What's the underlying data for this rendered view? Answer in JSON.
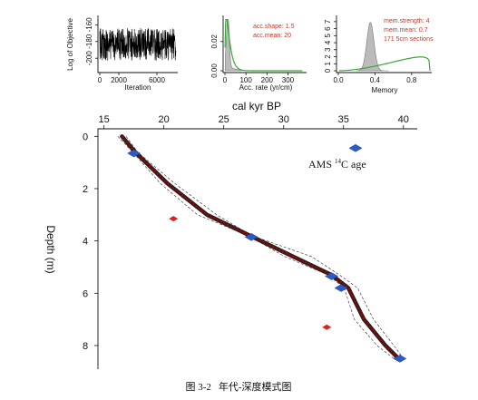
{
  "chart_data": [
    {
      "type": "line",
      "panel": "iteration-trace",
      "xlabel": "Iteration",
      "ylabel": "Log of Objective",
      "xticks": [
        "0",
        "2000",
        "6000"
      ],
      "yticks": [
        "-200",
        "-180",
        "-160"
      ],
      "xlim": [
        0,
        8000
      ],
      "ylim": [
        -215,
        -152
      ]
    },
    {
      "type": "area",
      "panel": "accumulation-rate",
      "xlabel": "Acc. rate (yr/cm)",
      "xticks": [
        "0",
        "100",
        "200",
        "300"
      ],
      "yticks": [
        "0.00",
        "0.02"
      ],
      "xlim": [
        0,
        380
      ],
      "ylim": [
        0,
        0.036
      ],
      "annotations": [
        "acc.shape: 1.5",
        "acc.mean: 20"
      ],
      "colors": {
        "prior": "#3aa63a",
        "posterior": "#bbbbbb"
      }
    },
    {
      "type": "area",
      "panel": "memory",
      "xlabel": "Memory",
      "xticks": [
        "0.0",
        "0.4",
        "0.8"
      ],
      "yticks": [
        "0",
        "1",
        "2",
        "3",
        "4",
        "5",
        "6",
        "7"
      ],
      "xlim": [
        0,
        1
      ],
      "ylim": [
        0,
        7.5
      ],
      "annotations": [
        "mem.strength: 4",
        "mem.mean: 0.7",
        "171 5cm sections"
      ],
      "colors": {
        "prior": "#3aa63a",
        "posterior": "#bbbbbb"
      }
    },
    {
      "type": "scatter",
      "panel": "age-depth",
      "title": "cal kyr BP",
      "ylabel": "Depth (m)",
      "xticks": [
        "15",
        "20",
        "25",
        "30",
        "35",
        "40"
      ],
      "yticks": [
        "0",
        "2",
        "4",
        "6",
        "8"
      ],
      "xlim": [
        14.8,
        41
      ],
      "ylim": [
        -0.15,
        8.8
      ],
      "legend": "AMS 14C age",
      "model": {
        "depth": [
          0.0,
          0.6,
          1.8,
          3.0,
          3.8,
          4.6,
          5.3,
          5.8,
          7.0,
          8.0,
          8.5
        ],
        "age": [
          16.5,
          17.6,
          20.3,
          23.6,
          27.2,
          30.8,
          34.0,
          35.4,
          36.7,
          38.5,
          39.6
        ]
      },
      "dated": [
        {
          "age": 17.5,
          "depth": 0.65
        },
        {
          "age": 27.3,
          "depth": 3.85
        },
        {
          "age": 34.0,
          "depth": 5.35
        },
        {
          "age": 34.8,
          "depth": 5.8
        },
        {
          "age": 39.7,
          "depth": 8.5
        },
        {
          "age": 36.0,
          "depth": 0.45
        }
      ],
      "outliers": [
        {
          "age": 20.8,
          "depth": 3.15
        },
        {
          "age": 33.6,
          "depth": 7.3
        }
      ],
      "colors": {
        "dates": "#2a5bc8",
        "outliers": "#e02020",
        "band": "#3b1a1a",
        "model": "#cc0000"
      }
    }
  ],
  "caption": {
    "number": "图 3-2",
    "title": "年代-深度模式图"
  }
}
